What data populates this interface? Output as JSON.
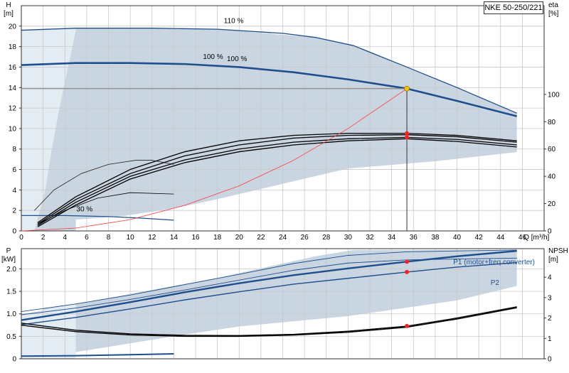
{
  "colors": {
    "envelope": "#c9d6e2",
    "envelope_light": "#e4ecf3",
    "curve": "#1f4e8c",
    "system": "#ff3b3b",
    "grid": "#c8c8c8",
    "op_point": "#f5c400"
  },
  "chart_data": [
    {
      "type": "line",
      "panel": "head-efficiency",
      "title": "NKE 50-250/221",
      "ylabel": "H\n[m]",
      "y2label": "eta\n[%]",
      "xlabel": "Q [m³/h]",
      "xlim": [
        0,
        48
      ],
      "ylim": [
        0,
        22
      ],
      "y2lim": [
        0,
        165
      ],
      "x_ticks": [
        "0",
        "2",
        "4",
        "6",
        "8",
        "10",
        "12",
        "14",
        "16",
        "18",
        "20",
        "22",
        "24",
        "26",
        "28",
        "30",
        "32",
        "34",
        "36",
        "38",
        "40",
        "42",
        "44",
        "46"
      ],
      "x_last_tick_label": "Q [m³/h]",
      "y_ticks": [
        "0",
        "2",
        "4",
        "6",
        "8",
        "10",
        "12",
        "14",
        "16",
        "18",
        "20"
      ],
      "y2_ticks": [
        "0",
        "20",
        "40",
        "60",
        "80",
        "100"
      ],
      "annotations": [
        "110 %",
        "100 %",
        "100 %",
        "30 %"
      ],
      "envelope": [
        [
          1.2,
          0
        ],
        [
          1.2,
          19.6
        ],
        [
          5,
          19.8
        ],
        [
          18,
          19.7
        ],
        [
          27,
          18.9
        ],
        [
          30.5,
          18.1
        ],
        [
          45.5,
          11.5
        ],
        [
          45.5,
          7.7
        ],
        [
          38,
          6.8
        ],
        [
          30,
          6.1
        ],
        [
          24,
          4.6
        ],
        [
          18,
          3.1
        ],
        [
          14,
          2.2
        ],
        [
          9,
          1.4
        ],
        [
          5,
          1.1
        ],
        [
          5,
          0
        ]
      ],
      "envelope_light": [
        [
          0,
          0
        ],
        [
          0,
          19.6
        ],
        [
          5,
          19.8
        ],
        [
          5,
          19.6
        ],
        [
          3.5,
          12
        ],
        [
          2.8,
          8
        ],
        [
          2.2,
          4
        ],
        [
          1.6,
          1.6
        ],
        [
          1.2,
          0
        ]
      ],
      "series": [
        {
          "name": "110 %",
          "role": "head",
          "x": [
            0,
            5,
            12,
            18,
            24,
            27,
            30.5,
            35.4,
            40,
            45.5
          ],
          "y": [
            19.6,
            19.8,
            19.8,
            19.7,
            19.3,
            18.9,
            18.1,
            16.0,
            14.0,
            11.5
          ]
        },
        {
          "name": "100 %",
          "role": "head",
          "x": [
            0,
            5,
            10,
            15,
            20,
            25,
            30,
            35.4,
            40,
            45.5
          ],
          "y": [
            16.2,
            16.4,
            16.4,
            16.3,
            16.0,
            15.5,
            14.8,
            13.9,
            12.7,
            11.2
          ]
        },
        {
          "name": "30 %",
          "role": "head",
          "x": [
            0,
            4,
            8,
            11,
            14
          ],
          "y": [
            1.5,
            1.5,
            1.4,
            1.25,
            1.05
          ]
        },
        {
          "name": "",
          "role": "head-thin",
          "x": [
            1.2,
            3,
            5.5,
            8,
            10.5,
            12,
            14
          ],
          "y": [
            2.0,
            4.0,
            5.6,
            6.5,
            6.9,
            6.9,
            6.5
          ]
        },
        {
          "name": "",
          "role": "eta",
          "x": [
            1.5,
            5,
            10,
            15,
            20,
            25,
            30,
            35.4,
            40,
            45.5
          ],
          "y": [
            6,
            25,
            45,
            58,
            66,
            70,
            71.5,
            71.5,
            70,
            66
          ]
        },
        {
          "name": "",
          "role": "eta",
          "x": [
            1.5,
            5,
            10,
            15,
            20,
            25,
            30,
            35.4,
            40,
            45.5
          ],
          "y": [
            5,
            23,
            42,
            55,
            63,
            68,
            70,
            70.5,
            69,
            65
          ]
        },
        {
          "name": "",
          "role": "eta",
          "x": [
            1.5,
            5,
            10,
            15,
            20,
            25,
            30,
            35.4,
            40,
            45.5
          ],
          "y": [
            4,
            21,
            40,
            52,
            60,
            65,
            67.5,
            68.5,
            67,
            63
          ]
        },
        {
          "name": "",
          "role": "eta",
          "x": [
            1.5,
            5,
            10,
            15,
            20,
            25,
            30,
            35.4,
            40,
            45.5
          ],
          "y": [
            3,
            19,
            38,
            50,
            58,
            63,
            66,
            67.5,
            65.5,
            61.5
          ]
        },
        {
          "name": "",
          "role": "eta-short",
          "x": [
            1.5,
            4,
            7,
            10,
            14
          ],
          "y": [
            5,
            15,
            24,
            28,
            27
          ]
        },
        {
          "name": "",
          "role": "system",
          "x": [
            0,
            5,
            10,
            15,
            20,
            25,
            30,
            35.4
          ],
          "y": [
            0,
            0.28,
            1.1,
            2.5,
            4.4,
            6.9,
            10.0,
            13.9
          ]
        }
      ],
      "operating_point": {
        "q": 35.4,
        "h": 13.9,
        "eta_points": [
          71.5,
          68.5
        ]
      },
      "reference_line_h": 13.9,
      "grid": true
    },
    {
      "type": "line",
      "panel": "power-npsh",
      "ylabel": "P\n[kW]",
      "y2label": "NPSH\n[m]",
      "xlim": [
        0,
        48
      ],
      "ylim": [
        0,
        2.45
      ],
      "y2lim": [
        0,
        5.4
      ],
      "y_ticks": [
        "0",
        "0.5",
        "1.0",
        "1.5",
        "2.0"
      ],
      "y2_ticks": [
        "0",
        "1",
        "2",
        "3",
        "4"
      ],
      "legend_labels": [
        "P1 (motor+freq.converter)",
        "P2"
      ],
      "envelope": [
        [
          2,
          0
        ],
        [
          2,
          1.12
        ],
        [
          5,
          1.22
        ],
        [
          18,
          1.8
        ],
        [
          27,
          2.28
        ],
        [
          30.5,
          2.42
        ],
        [
          45.5,
          2.42
        ],
        [
          45.5,
          1.62
        ],
        [
          40,
          1.3
        ],
        [
          30,
          0.95
        ],
        [
          20,
          0.72
        ],
        [
          14,
          0.5
        ],
        [
          5,
          0.15
        ],
        [
          5,
          0
        ]
      ],
      "envelope_light": [
        [
          0,
          0
        ],
        [
          0,
          1.0
        ],
        [
          5,
          1.22
        ],
        [
          5,
          0
        ]
      ],
      "series": [
        {
          "name": "",
          "role": "power",
          "x": [
            0,
            5,
            10,
            15,
            20,
            25,
            30,
            35.4,
            40,
            45.5
          ],
          "y": [
            1.05,
            1.22,
            1.42,
            1.65,
            1.88,
            2.12,
            2.3,
            2.38,
            2.4,
            2.42
          ]
        },
        {
          "name": "",
          "role": "power",
          "x": [
            0,
            5,
            10,
            15,
            20,
            25,
            30,
            35.4,
            40,
            45.5
          ],
          "y": [
            0.98,
            1.13,
            1.32,
            1.53,
            1.75,
            1.97,
            2.13,
            2.2,
            2.22,
            2.24
          ]
        },
        {
          "name": "P1 (motor+freq.converter)",
          "role": "power-main",
          "x": [
            0,
            5,
            10,
            15,
            20,
            25,
            30,
            35.4,
            40,
            45.5
          ],
          "y": [
            0.86,
            1.05,
            1.26,
            1.48,
            1.68,
            1.86,
            2.01,
            2.16,
            2.28,
            2.4
          ]
        },
        {
          "name": "P2",
          "role": "power-main",
          "x": [
            0,
            5,
            10,
            15,
            20,
            25,
            30,
            35.4,
            40,
            45.5
          ],
          "y": [
            0.76,
            0.92,
            1.11,
            1.31,
            1.49,
            1.66,
            1.79,
            1.93,
            2.04,
            2.14
          ]
        },
        {
          "name": "",
          "role": "power-low",
          "x": [
            0,
            5,
            10,
            14
          ],
          "y": [
            0.06,
            0.07,
            0.09,
            0.11
          ]
        },
        {
          "name": "",
          "role": "npsh",
          "x": [
            0,
            5,
            10,
            15,
            20,
            25,
            30,
            35.4,
            40,
            45.5
          ],
          "y": [
            1.75,
            1.4,
            1.22,
            1.15,
            1.14,
            1.2,
            1.35,
            1.6,
            2.0,
            2.55
          ]
        },
        {
          "name": "",
          "role": "npsh",
          "x": [
            0,
            5,
            10,
            15,
            20,
            25,
            30,
            35.4,
            40,
            45.5
          ],
          "y": [
            1.65,
            1.33,
            1.17,
            1.1,
            1.1,
            1.16,
            1.3,
            1.55,
            1.95,
            2.5
          ]
        }
      ],
      "operating_points": [
        {
          "q": 35.4,
          "p": 2.16
        },
        {
          "q": 35.4,
          "p": 1.93
        },
        {
          "q": 35.4,
          "p": 0.73
        }
      ],
      "grid": true
    }
  ]
}
